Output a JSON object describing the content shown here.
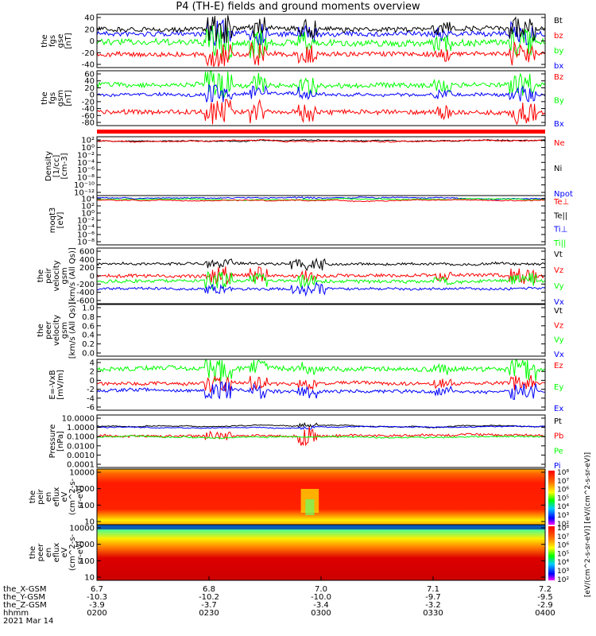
{
  "title": "P4 (TH-E) fields and ground moments overview",
  "colors": {
    "black": "#000000",
    "red": "#ff0000",
    "green": "#00ff00",
    "blue": "#0000ff"
  },
  "panels": [
    {
      "id": "fgs-gse",
      "ylabel": [
        "the",
        "fgs",
        "gse",
        "[nT]"
      ],
      "yticks": [
        "40",
        "20",
        "0",
        "-20",
        "-40"
      ],
      "legend": [
        {
          "text": "Bt",
          "color": "#000000"
        },
        {
          "text": "bz",
          "color": "#ff0000"
        },
        {
          "text": "by",
          "color": "#00ff00"
        },
        {
          "text": "bx",
          "color": "#0000ff"
        }
      ]
    },
    {
      "id": "fgs-gsm",
      "ylabel": [
        "the",
        "fgs",
        "gsm",
        "[nT]"
      ],
      "yticks": [
        "60",
        "40",
        "20",
        "0",
        "-20",
        "-40",
        "-60",
        "-80"
      ],
      "legend": [
        {
          "text": "Bz",
          "color": "#ff0000"
        },
        {
          "text": "By",
          "color": "#00ff00"
        },
        {
          "text": "Bx",
          "color": "#0000ff"
        }
      ]
    },
    {
      "id": "density",
      "ylabel": [
        "Density",
        "[1/cc]",
        "[cm-3]"
      ],
      "yticks": [
        "10²",
        "10⁰",
        "10⁻²",
        "10⁻⁴",
        "10⁻⁶",
        "10⁻⁸",
        "10⁻¹⁰",
        "10⁻¹²"
      ],
      "legend": [
        {
          "text": "Ne",
          "color": "#ff0000"
        },
        {
          "text": "Ni",
          "color": "#000000"
        },
        {
          "text": "Npot",
          "color": "#0000ff"
        }
      ]
    },
    {
      "id": "temp",
      "ylabel": [
        "moqt3",
        "[eV]"
      ],
      "yticks": [
        "10⁴",
        "10²",
        "10⁰",
        "10⁻²",
        "10⁻⁴",
        "10⁻⁶",
        "10⁻⁸"
      ],
      "legend": [
        {
          "text": "Te⊥",
          "color": "#ff0000"
        },
        {
          "text": "Te||",
          "color": "#000000"
        },
        {
          "text": "Ti⊥",
          "color": "#0000ff"
        },
        {
          "text": "Ti||",
          "color": "#00ff00"
        }
      ]
    },
    {
      "id": "peir-vel",
      "ylabel": [
        "the",
        "peir",
        "velocity",
        "gsm",
        "[km/s (All Qs)]"
      ],
      "yticks": [
        "600",
        "400",
        "200",
        "0",
        "-200",
        "-400",
        "-600"
      ],
      "legend": [
        {
          "text": "Vt",
          "color": "#000000"
        },
        {
          "text": "Vz",
          "color": "#ff0000"
        },
        {
          "text": "Vy",
          "color": "#00ff00"
        },
        {
          "text": "Vx",
          "color": "#0000ff"
        }
      ]
    },
    {
      "id": "peer-vel",
      "ylabel": [
        "the",
        "peer",
        "velocity",
        "gsm",
        "[km/s (All Qs)]"
      ],
      "yticks": [
        "1.0",
        "0.8",
        "0.6",
        "0.4",
        "0.2",
        "0.0"
      ],
      "legend": [
        {
          "text": "Vt",
          "color": "#000000"
        },
        {
          "text": "Vz",
          "color": "#ff0000"
        },
        {
          "text": "Vy",
          "color": "#00ff00"
        },
        {
          "text": "Vx",
          "color": "#0000ff"
        }
      ]
    },
    {
      "id": "efield",
      "ylabel": [
        "E=-VxB",
        "[mV/m]"
      ],
      "yticks": [
        "4",
        "2",
        "0",
        "-2",
        "-4",
        "-6"
      ],
      "legend": [
        {
          "text": "Ez",
          "color": "#ff0000"
        },
        {
          "text": "Ey",
          "color": "#00ff00"
        },
        {
          "text": "Ex",
          "color": "#0000ff"
        }
      ]
    },
    {
      "id": "pressure",
      "ylabel": [
        "Pressure",
        "[nPa]"
      ],
      "yticks": [
        "10.0000",
        "1.0000",
        "0.1000",
        "0.0100",
        "0.0010",
        "0.0001"
      ],
      "legend": [
        {
          "text": "Pt",
          "color": "#000000"
        },
        {
          "text": "Pb",
          "color": "#ff0000"
        },
        {
          "text": "Pe",
          "color": "#00ff00"
        },
        {
          "text": "Pi",
          "color": "#0000ff"
        }
      ]
    },
    {
      "id": "peir-spec",
      "ylabel": [
        "the",
        "peir",
        "en",
        "eflux",
        "eV",
        "(cm^2-s-",
        "sr-eV)"
      ],
      "yticks": [
        "10000",
        "1000",
        "100",
        "10"
      ]
    },
    {
      "id": "peer-spec",
      "ylabel": [
        "the",
        "peer",
        "en",
        "eflux",
        "eV",
        "(cm^2-s-",
        "sr-eV)"
      ],
      "yticks": [
        "10000",
        "1000",
        "100",
        "10"
      ]
    }
  ],
  "colorbar": {
    "ticks": [
      "10⁸",
      "10⁷",
      "10⁶",
      "10⁵",
      "10⁴",
      "10³",
      "10²",
      "10⁸",
      "10⁷",
      "10⁶",
      "10⁵",
      "10⁴",
      "10³",
      "10²"
    ],
    "label": "[eV/(cm^2-s-sr-eV)] [eV/(cm^2-s-sr-eV)]"
  },
  "xaxis": {
    "row_labels": [
      "the_X-GSM",
      "the_Y-GSM",
      "the_Z-GSM",
      "hhmm",
      "2021 Mar 14"
    ],
    "ticks": [
      {
        "x": "6.7",
        "y": "-10.3",
        "z": "-3.9",
        "hhmm": "0200"
      },
      {
        "x": "6.8",
        "y": "-10.2",
        "z": "-3.7",
        "hhmm": "0230"
      },
      {
        "x": "7.0",
        "y": "-10.0",
        "z": "-3.4",
        "hhmm": "0300"
      },
      {
        "x": "7.1",
        "y": "-9.7",
        "z": "-3.2",
        "hhmm": "0330"
      },
      {
        "x": "7.2",
        "y": "-9.5",
        "z": "-2.9",
        "hhmm": "0400"
      }
    ]
  },
  "chart_data": [
    {
      "type": "line",
      "title": "",
      "ylabel": "the fgs gse [nT]",
      "ylim": [
        -40,
        40
      ],
      "x": [
        "0200",
        "0230",
        "0300",
        "0330",
        "0400"
      ],
      "series": [
        {
          "name": "Bt",
          "values": [
            20,
            19,
            18,
            18,
            19
          ]
        },
        {
          "name": "bz",
          "values": [
            -15,
            -14,
            -12,
            -14,
            -15
          ]
        },
        {
          "name": "by",
          "values": [
            3,
            5,
            4,
            5,
            8
          ]
        },
        {
          "name": "bx",
          "values": [
            -2,
            -1,
            0,
            -1,
            2
          ]
        }
      ]
    },
    {
      "type": "line",
      "ylabel": "the fgs gsm [nT]",
      "ylim": [
        -80,
        60
      ],
      "x": [
        "0200",
        "0230",
        "0300",
        "0330",
        "0400"
      ],
      "series": [
        {
          "name": "Bz",
          "values": [
            -40,
            -35,
            -38,
            -40,
            -35
          ]
        },
        {
          "name": "By",
          "values": [
            20,
            22,
            22,
            20,
            18
          ]
        },
        {
          "name": "Bx",
          "values": [
            0,
            2,
            0,
            -2,
            0
          ]
        }
      ]
    },
    {
      "type": "line",
      "ylabel": "Density [1/cc] [cm-3]",
      "yscale": "log",
      "x": [
        "0200",
        "0230",
        "0300",
        "0330",
        "0400"
      ],
      "series": [
        {
          "name": "Ne",
          "values": [
            1,
            1,
            0.8,
            1,
            1
          ]
        },
        {
          "name": "Ni",
          "values": [
            1,
            1,
            0.8,
            1,
            1
          ]
        }
      ]
    },
    {
      "type": "line",
      "ylabel": "moqt3 [eV]",
      "yscale": "log",
      "x": [
        "0200",
        "0230",
        "0300",
        "0330",
        "0400"
      ],
      "series": [
        {
          "name": "Ti⊥",
          "values": [
            3000,
            3000,
            3500,
            3000,
            3000
          ]
        },
        {
          "name": "Te⊥",
          "values": [
            1000,
            1000,
            1200,
            1000,
            1000
          ]
        }
      ]
    },
    {
      "type": "line",
      "ylabel": "the peir velocity gsm [km/s (All Qs)]",
      "ylim": [
        -600,
        600
      ],
      "x": [
        "0200",
        "0230",
        "0300",
        "0330",
        "0400"
      ],
      "series": [
        {
          "name": "Vt",
          "values": [
            250,
            260,
            450,
            260,
            270
          ]
        },
        {
          "name": "Vz",
          "values": [
            -80,
            -60,
            -50,
            -70,
            -60
          ]
        },
        {
          "name": "Vy",
          "values": [
            -100,
            -90,
            -80,
            -100,
            -110
          ]
        },
        {
          "name": "Vx",
          "values": [
            -200,
            -210,
            -300,
            -200,
            -210
          ]
        }
      ]
    },
    {
      "type": "line",
      "ylabel": "the peer velocity gsm [km/s (All Qs)]",
      "ylim": [
        0,
        1
      ],
      "series": []
    },
    {
      "type": "line",
      "ylabel": "E=-VxB [mV/m]",
      "ylim": [
        -6,
        4
      ],
      "x": [
        "0200",
        "0230",
        "0300",
        "0330",
        "0400"
      ],
      "series": [
        {
          "name": "Ez",
          "values": [
            0,
            0,
            0,
            0,
            0
          ]
        },
        {
          "name": "Ey",
          "values": [
            2,
            2,
            1.5,
            2,
            1.5
          ]
        },
        {
          "name": "Ex",
          "values": [
            -2,
            -1.5,
            -1.5,
            -1.5,
            -1
          ]
        }
      ]
    },
    {
      "type": "line",
      "ylabel": "Pressure [nPa]",
      "yscale": "log",
      "x": [
        "0200",
        "0230",
        "0300",
        "0330",
        "0400"
      ],
      "series": [
        {
          "name": "Pt",
          "values": [
            1.1,
            1.0,
            0.7,
            1.0,
            1.0
          ]
        },
        {
          "name": "Pi",
          "values": [
            1.0,
            0.95,
            0.6,
            0.95,
            0.95
          ]
        },
        {
          "name": "Pb",
          "values": [
            0.25,
            0.25,
            0.15,
            0.25,
            0.25
          ]
        },
        {
          "name": "Pe",
          "values": [
            0.15,
            0.15,
            0.1,
            0.15,
            0.15
          ]
        }
      ]
    },
    {
      "type": "heatmap",
      "ylabel": "the peir en eflux eV/(cm^2-s-sr-eV)",
      "ylim": [
        10,
        30000
      ],
      "yscale": "log"
    },
    {
      "type": "heatmap",
      "ylabel": "the peer en eflux eV/(cm^2-s-sr-eV)",
      "ylim": [
        10,
        30000
      ],
      "yscale": "log"
    }
  ]
}
